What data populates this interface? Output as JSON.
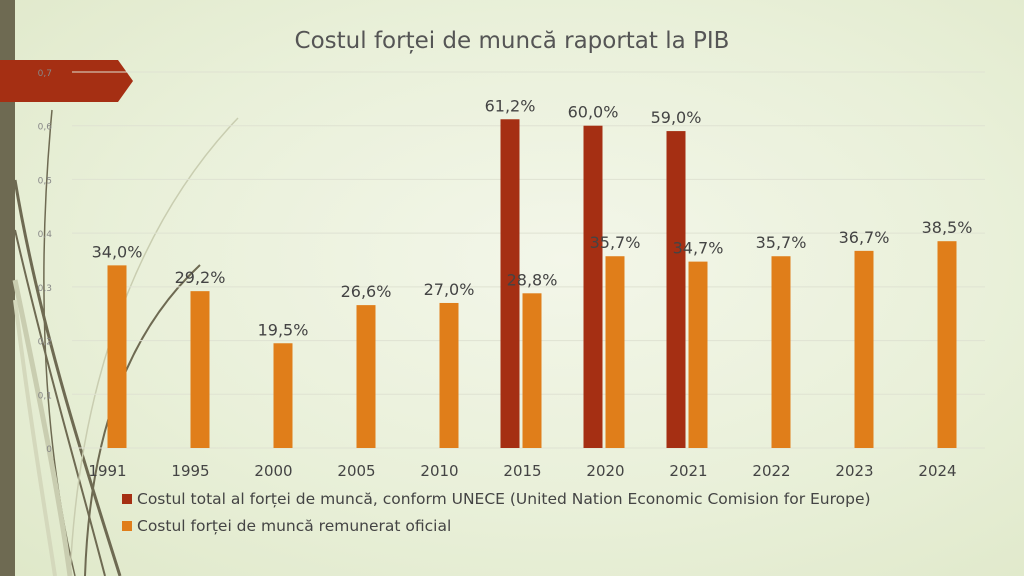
{
  "chart_data": {
    "type": "bar",
    "title": "Costul forței de muncă raportat la PIB",
    "categories": [
      "1991",
      "1995",
      "2000",
      "2005",
      "2010",
      "2015",
      "2020",
      "2021",
      "2022",
      "2023",
      "2024"
    ],
    "series": [
      {
        "name": "Costul total al forței de muncă, conform UNECE (United Nation Economic Comision for Europe)",
        "color": "#a52f13",
        "values": [
          null,
          null,
          null,
          null,
          null,
          0.612,
          0.6,
          0.59,
          null,
          null,
          null
        ],
        "labels": [
          "",
          "",
          "",
          "",
          "",
          "61,2%",
          "60,0%",
          "59,0%",
          "",
          "",
          ""
        ]
      },
      {
        "name": "Costul forței de muncă remunerat oficial",
        "color": "#e07e1a",
        "values": [
          0.34,
          0.292,
          0.195,
          0.266,
          0.27,
          0.288,
          0.357,
          0.347,
          0.357,
          0.367,
          0.385
        ],
        "labels": [
          "34,0%",
          "29,2%",
          "19,5%",
          "26,6%",
          "27,0%",
          "28,8%",
          "35,7%",
          "34,7%",
          "35,7%",
          "36,7%",
          "38,5%"
        ]
      }
    ],
    "yticks": [
      "0",
      "0,1",
      "0,2",
      "0,3",
      "0,4",
      "0,5",
      "0,6",
      "0,7"
    ],
    "ylim": [
      0,
      0.7
    ],
    "grid": true,
    "legend": "bottom"
  }
}
